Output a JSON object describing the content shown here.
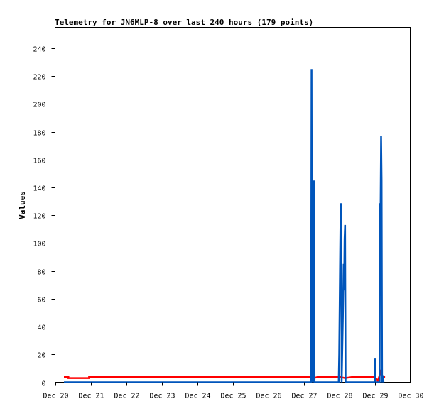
{
  "chart_data": {
    "type": "line",
    "title": "Telemetry for JN6MLP-8 over last 240 hours (179 points)",
    "xlabel": "",
    "ylabel": "Values",
    "x_ticks": [
      "Dec 20",
      "Dec 21",
      "Dec 22",
      "Dec 23",
      "Dec 24",
      "Dec 25",
      "Dec 26",
      "Dec 27",
      "Dec 28",
      "Dec 29",
      "Dec 30"
    ],
    "xlim": [
      "Dec 20",
      "Dec 30"
    ],
    "ylim": [
      0,
      255
    ],
    "y_ticks": [
      0,
      20,
      40,
      60,
      80,
      100,
      120,
      140,
      160,
      180,
      200,
      220,
      240
    ],
    "grid": false,
    "series": [
      {
        "color": "#ff0000",
        "points": [
          [
            "Dec 20 06:00",
            4
          ],
          [
            "Dec 20 09:00",
            4
          ],
          [
            "Dec 20 09:00",
            3
          ],
          [
            "Dec 20 23:00",
            3
          ],
          [
            "Dec 20 23:00",
            4
          ],
          [
            "Dec 27 05:00",
            4
          ],
          [
            "Dec 27 07:00",
            3
          ],
          [
            "Dec 27 10:00",
            4
          ],
          [
            "Dec 28 00:00",
            4
          ],
          [
            "Dec 28 04:00",
            3
          ],
          [
            "Dec 28 10:00",
            4
          ],
          [
            "Dec 29 00:00",
            4
          ],
          [
            "Dec 29 02:00",
            1
          ],
          [
            "Dec 29 03:00",
            4
          ],
          [
            "Dec 29 04:00",
            9
          ],
          [
            "Dec 29 05:00",
            2
          ],
          [
            "Dec 29 06:00",
            4
          ],
          [
            "Dec 29 07:00",
            4
          ]
        ]
      },
      {
        "color": "#0055bb",
        "points": [
          [
            "Dec 20 06:00",
            0
          ],
          [
            "Dec 27 05:00",
            0
          ],
          [
            "Dec 27 05:20",
            225
          ],
          [
            "Dec 27 05:40",
            0
          ],
          [
            "Dec 27 05:50",
            72
          ],
          [
            "Dec 27 06:10",
            68
          ],
          [
            "Dec 27 06:20",
            77
          ],
          [
            "Dec 27 06:40",
            0
          ],
          [
            "Dec 27 07:00",
            145
          ],
          [
            "Dec 27 07:20",
            0
          ],
          [
            "Dec 27 23:40",
            0
          ],
          [
            "Dec 28 00:00",
            20
          ],
          [
            "Dec 28 00:20",
            56
          ],
          [
            "Dec 28 00:40",
            94
          ],
          [
            "Dec 28 01:00",
            128
          ],
          [
            "Dec 28 01:20",
            128
          ],
          [
            "Dec 28 01:40",
            0
          ],
          [
            "Dec 28 02:10",
            28
          ],
          [
            "Dec 28 02:30",
            47
          ],
          [
            "Dec 28 03:00",
            85
          ],
          [
            "Dec 28 03:20",
            66
          ],
          [
            "Dec 28 03:40",
            103
          ],
          [
            "Dec 28 04:00",
            113
          ],
          [
            "Dec 28 04:20",
            0
          ],
          [
            "Dec 29 00:00",
            0
          ],
          [
            "Dec 29 00:20",
            17
          ],
          [
            "Dec 29 00:40",
            0
          ],
          [
            "Dec 29 03:20",
            0
          ],
          [
            "Dec 29 03:40",
            128
          ],
          [
            "Dec 29 04:00",
            128
          ],
          [
            "Dec 29 04:20",
            177
          ],
          [
            "Dec 29 04:40",
            145
          ],
          [
            "Dec 29 05:00",
            0
          ],
          [
            "Dec 29 05:20",
            5
          ],
          [
            "Dec 29 05:40",
            2
          ],
          [
            "Dec 29 06:00",
            0
          ]
        ]
      }
    ]
  }
}
